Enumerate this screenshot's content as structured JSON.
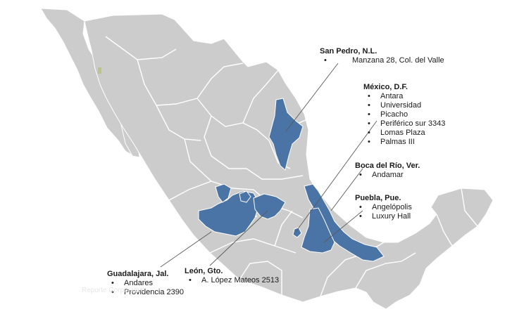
{
  "colors": {
    "land": "#cccccc",
    "border": "#ffffff",
    "highlight": "#4a73a6",
    "leader_line": "#5a5a5a",
    "island": "#bcc48a"
  },
  "locations": [
    {
      "id": "san-pedro",
      "title": "San Pedro, N.L.",
      "items": [
        "Manzana 28, Col. del Valle"
      ]
    },
    {
      "id": "mexico-df",
      "title": "México, D.F.",
      "items": [
        "Antara",
        "Universidad",
        "Picacho",
        "Periférico sur 3343",
        "Lomas Plaza",
        "Palmas III"
      ]
    },
    {
      "id": "boca-del-rio",
      "title": "Boca del Río, Ver.",
      "items": [
        "Andamar"
      ]
    },
    {
      "id": "puebla",
      "title": "Puebla, Pue.",
      "items": [
        "Angelópolis",
        "Luxury Hall"
      ]
    },
    {
      "id": "guadalajara",
      "title": "Guadalajara, Jal.",
      "items": [
        "Andares",
        "Providencia 2390"
      ]
    },
    {
      "id": "leon",
      "title": "León, Gto.",
      "items": [
        "A. López Mateos 2513"
      ]
    }
  ],
  "watermark": "Reporte Corporativo"
}
